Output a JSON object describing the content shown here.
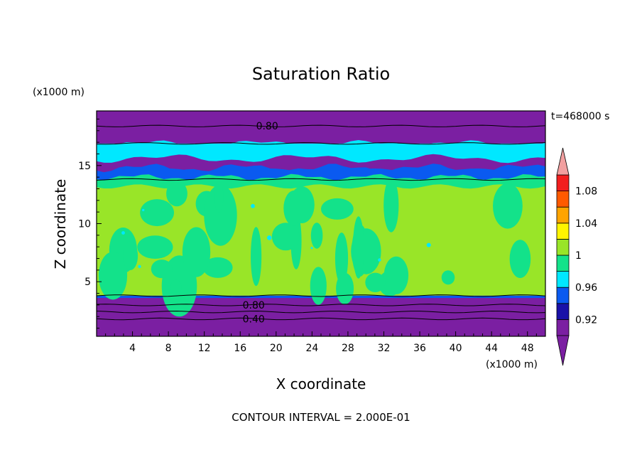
{
  "chart_data": {
    "type": "heatmap",
    "title": "Saturation Ratio",
    "xlabel": "X coordinate",
    "ylabel": "Z coordinate",
    "x_unit": "(x1000 m)",
    "y_unit": "(x1000 m)",
    "time_label": "t=468000 s",
    "footer": "CONTOUR INTERVAL = 2.000E-01",
    "xlim": [
      0,
      50
    ],
    "ylim": [
      0.3,
      19.7
    ],
    "x_ticks": [
      4,
      8,
      12,
      16,
      20,
      24,
      28,
      32,
      36,
      40,
      44,
      48
    ],
    "y_ticks": [
      5,
      10,
      15
    ],
    "contour_labels": [
      {
        "text": "0.80",
        "x": 19,
        "z": 18.4
      },
      {
        "text": "0.80",
        "x": 17.5,
        "z": 3.0
      },
      {
        "text": "0.40",
        "x": 17.5,
        "z": 1.8
      }
    ],
    "colorbar": {
      "levels": [
        0.9,
        0.92,
        0.94,
        0.96,
        0.98,
        1.0,
        1.02,
        1.04,
        1.06,
        1.08,
        1.1
      ],
      "tick_labels": [
        "0.92",
        "0.96",
        "1",
        "1.04",
        "1.08"
      ],
      "colors": [
        "#7B1FA2",
        "#1A11A8",
        "#0A5AF0",
        "#00E8FF",
        "#13E28A",
        "#99E528",
        "#FFF500",
        "#FFA400",
        "#FF5A00",
        "#F21E1E"
      ],
      "under_color": "#7B1FA2",
      "over_color": "#F2A0A0"
    },
    "layers": [
      {
        "z": [
          0.3,
          3.6
        ],
        "value_range": "< 0.90",
        "color": "#7B1FA2"
      },
      {
        "z": [
          3.6,
          3.8
        ],
        "value_range": "0.92 - 0.98",
        "color": "#0A5AF0"
      },
      {
        "z": [
          3.8,
          13.8
        ],
        "value_range": "0.98 - 1.02",
        "color": "#99E528"
      },
      {
        "z": [
          13.8,
          15.2
        ],
        "value_range": "0.90 - 0.98",
        "color": "#0A5AF0"
      },
      {
        "z": [
          15.2,
          16.9
        ],
        "value_range": "0.90 - 0.98",
        "color": "#00E8FF"
      },
      {
        "z": [
          16.9,
          19.7
        ],
        "value_range": "< 0.90",
        "color": "#7B1FA2"
      }
    ]
  }
}
